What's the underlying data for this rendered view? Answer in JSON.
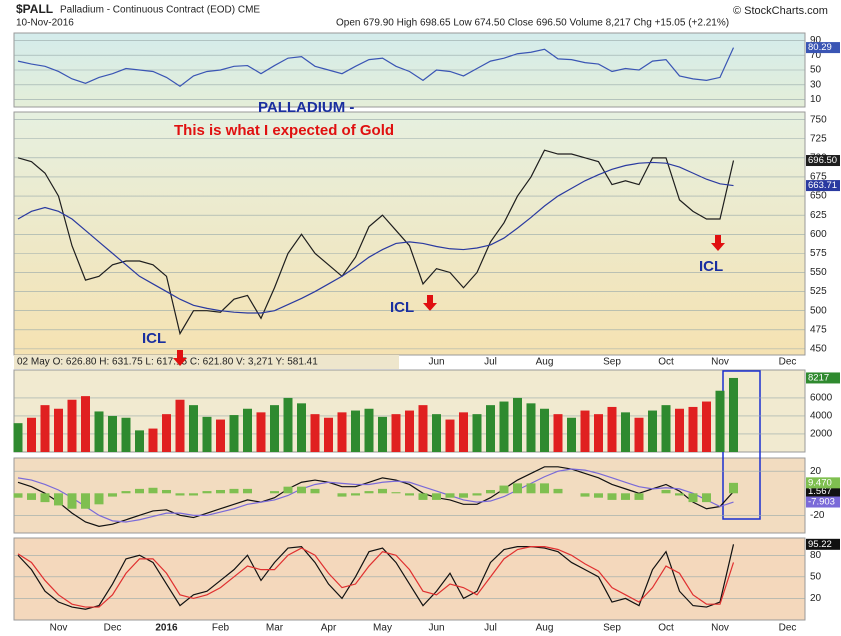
{
  "header": {
    "symbol": "$PALL",
    "name": "Palladium - Continuous Contract (EOD) CME",
    "date": "10-Nov-2016",
    "quote": "Open 679.90 High 698.65 Low 674.50 Close 696.50 Volume 8,217 Chg +15.05 (+2.21%)",
    "credit": "© StockCharts.com",
    "info": "02 May O: 626.80  H: 631.75  L: 617.15  C: 621.80  V: 3,271  Y: 581.41"
  },
  "annotations": [
    "PALLADIUM -",
    "This is what I expected of Gold",
    "ICL",
    "ICL",
    "ICL"
  ],
  "chart_data": [
    {
      "type": "line",
      "ylim": [
        0,
        100
      ],
      "yticks": [
        10,
        30,
        50,
        70,
        90
      ],
      "grid": true,
      "series": [
        {
          "color": "#3a55b4",
          "values": [
            62,
            58,
            55,
            48,
            38,
            32,
            40,
            45,
            52,
            50,
            48,
            40,
            28,
            42,
            48,
            50,
            55,
            56,
            45,
            56,
            66,
            68,
            55,
            50,
            45,
            55,
            64,
            66,
            55,
            48,
            36,
            50,
            48,
            42,
            52,
            62,
            66,
            72,
            74,
            78,
            65,
            64,
            60,
            58,
            48,
            52,
            50,
            62,
            64,
            42,
            38,
            36,
            40,
            80.29,
            null,
            null,
            null,
            null
          ]
        }
      ]
    },
    {
      "type": "line",
      "ylim": [
        442,
        760
      ],
      "yticks": [
        450,
        475,
        500,
        525,
        550,
        575,
        600,
        625,
        650,
        675,
        700,
        725,
        750
      ],
      "grid": true,
      "series": [
        {
          "color": "#1e1e1e",
          "values": [
            700,
            695,
            680,
            650,
            585,
            540,
            545,
            560,
            565,
            565,
            560,
            545,
            470,
            500,
            500,
            498,
            515,
            520,
            490,
            530,
            575,
            600,
            575,
            560,
            545,
            570,
            610,
            625,
            605,
            585,
            535,
            555,
            550,
            530,
            550,
            590,
            615,
            650,
            675,
            710,
            705,
            705,
            700,
            695,
            665,
            670,
            665,
            700,
            700,
            645,
            630,
            620,
            620,
            696.5,
            null,
            null,
            null,
            null
          ],
          "value_labels": [
            null,
            null,
            null,
            null,
            null,
            null,
            null,
            null,
            null,
            null,
            null,
            null,
            null,
            null,
            null,
            null,
            null,
            null,
            null,
            null,
            null,
            null,
            null,
            null,
            null,
            null,
            null,
            null,
            null,
            null,
            null,
            null,
            null,
            null,
            null,
            null,
            null,
            null,
            null,
            null,
            null,
            null,
            null,
            null,
            null,
            null,
            null,
            null,
            null,
            null,
            null,
            null,
            null,
            "696.50",
            null,
            null,
            null,
            null
          ]
        },
        {
          "color": "#2a3aa0",
          "values": [
            620,
            630,
            635,
            630,
            620,
            605,
            590,
            575,
            560,
            545,
            535,
            525,
            515,
            507,
            503,
            500,
            498,
            497,
            497,
            500,
            508,
            516,
            525,
            535,
            545,
            557,
            570,
            580,
            588,
            590,
            588,
            584,
            581,
            580,
            582,
            586,
            595,
            608,
            622,
            637,
            650,
            660,
            670,
            678,
            685,
            690,
            693,
            694,
            693,
            688,
            680,
            672,
            666,
            663.71,
            null,
            null,
            null,
            null
          ]
        }
      ]
    },
    {
      "type": "bar",
      "ylim": [
        0,
        9100
      ],
      "yticks": [
        2000,
        4000,
        6000
      ],
      "grid": true,
      "up_color": "#2f8a2f",
      "down_color": "#e02020",
      "values": [
        3200,
        3800,
        5200,
        4800,
        5800,
        6200,
        4500,
        4000,
        3800,
        2400,
        2600,
        4200,
        5800,
        5200,
        3900,
        3600,
        4100,
        4800,
        4400,
        5200,
        6000,
        5400,
        4200,
        3800,
        4400,
        4600,
        4800,
        3900,
        4200,
        4600,
        5200,
        4200,
        3600,
        4400,
        4200,
        5200,
        5600,
        6000,
        5400,
        4800,
        4200,
        3800,
        4600,
        4200,
        5000,
        4400,
        3800,
        4600,
        5200,
        4800,
        5000,
        5600,
        6800,
        8217,
        null,
        null,
        null,
        null
      ]
    },
    {
      "type": "line",
      "ylim": [
        -36,
        32
      ],
      "yticks": [
        -20,
        20
      ],
      "grid": true,
      "series": [
        {
          "color": "#111111",
          "values": [
            10,
            6,
            0,
            -8,
            -18,
            -26,
            -30,
            -28,
            -24,
            -20,
            -16,
            -15,
            -20,
            -22,
            -18,
            -14,
            -10,
            -6,
            -8,
            -4,
            4,
            10,
            12,
            10,
            6,
            6,
            10,
            14,
            12,
            8,
            0,
            -4,
            -6,
            -10,
            -10,
            -4,
            4,
            12,
            18,
            24,
            24,
            22,
            18,
            14,
            8,
            4,
            0,
            4,
            8,
            2,
            -8,
            -14,
            -12,
            1.567,
            null,
            null,
            null,
            null
          ]
        },
        {
          "color": "#7a6ad8",
          "values": [
            14,
            12,
            8,
            3,
            -4,
            -12,
            -20,
            -25,
            -26,
            -24,
            -21,
            -18,
            -18,
            -20,
            -20,
            -17,
            -14,
            -10,
            -8,
            -6,
            -2,
            4,
            8,
            10,
            9,
            8,
            8,
            10,
            11,
            10,
            6,
            2,
            -2,
            -6,
            -8,
            -7,
            -3,
            3,
            9,
            15,
            20,
            22,
            21,
            18,
            14,
            10,
            6,
            4,
            5,
            4,
            0,
            -6,
            -12,
            -7.903,
            null,
            null,
            null,
            null
          ]
        },
        {
          "type": "bar",
          "color": "#7fbf50",
          "values": [
            -4,
            -6,
            -8,
            -11,
            -14,
            -14,
            -10,
            -3,
            2,
            4,
            5,
            3,
            -2,
            -2,
            2,
            3,
            4,
            4,
            0,
            2,
            6,
            6,
            4,
            0,
            -3,
            -2,
            2,
            4,
            1,
            -2,
            -6,
            -6,
            -4,
            -4,
            -2,
            3,
            7,
            9,
            9,
            9,
            4,
            0,
            -3,
            -4,
            -6,
            -6,
            -6,
            0,
            3,
            -2,
            -8,
            -8,
            0,
            9.47,
            null,
            null,
            null,
            null
          ],
          "value_labels": [
            null,
            null,
            null,
            null,
            null,
            null,
            null,
            null,
            null,
            null,
            null,
            null,
            null,
            null,
            null,
            null,
            null,
            null,
            null,
            null,
            null,
            null,
            null,
            null,
            null,
            null,
            null,
            null,
            null,
            null,
            null,
            null,
            null,
            null,
            null,
            null,
            null,
            null,
            null,
            null,
            null,
            null,
            null,
            null,
            null,
            null,
            null,
            null,
            null,
            null,
            null,
            null,
            null,
            "9.470",
            null,
            null,
            null,
            null
          ]
        }
      ]
    },
    {
      "type": "line",
      "ylim": [
        -10,
        104
      ],
      "yticks": [
        20,
        50,
        80
      ],
      "grid": true,
      "categories": [
        null,
        null,
        null,
        "Nov",
        null,
        null,
        null,
        "Dec",
        null,
        null,
        null,
        "2016",
        null,
        null,
        null,
        "Feb",
        null,
        null,
        null,
        "Mar",
        null,
        null,
        null,
        "Apr",
        null,
        null,
        null,
        "May",
        null,
        null,
        null,
        "Jun",
        null,
        null,
        null,
        "Jul",
        null,
        null,
        null,
        "Aug",
        null,
        null,
        null,
        null,
        "Sep",
        null,
        null,
        null,
        "Oct",
        null,
        null,
        null,
        "Nov",
        null,
        null,
        null,
        null,
        "Dec"
      ],
      "series": [
        {
          "color": "#111111",
          "values": [
            80,
            60,
            30,
            15,
            8,
            5,
            10,
            40,
            75,
            80,
            70,
            40,
            10,
            25,
            30,
            45,
            60,
            80,
            45,
            70,
            90,
            92,
            70,
            40,
            20,
            50,
            85,
            90,
            70,
            40,
            10,
            30,
            55,
            20,
            30,
            70,
            88,
            92,
            92,
            90,
            85,
            70,
            60,
            50,
            15,
            20,
            10,
            60,
            85,
            30,
            10,
            8,
            15,
            95.22,
            null,
            null,
            null,
            null
          ]
        },
        {
          "color": "#e03030",
          "last_tag": false,
          "values": [
            82,
            70,
            45,
            25,
            12,
            8,
            8,
            25,
            55,
            75,
            75,
            55,
            25,
            20,
            25,
            35,
            50,
            65,
            60,
            60,
            80,
            90,
            80,
            55,
            35,
            40,
            65,
            85,
            80,
            60,
            30,
            25,
            40,
            35,
            25,
            50,
            75,
            88,
            92,
            92,
            88,
            80,
            68,
            58,
            35,
            25,
            15,
            35,
            65,
            55,
            25,
            12,
            12,
            70,
            null,
            null,
            null,
            null
          ]
        }
      ]
    }
  ]
}
